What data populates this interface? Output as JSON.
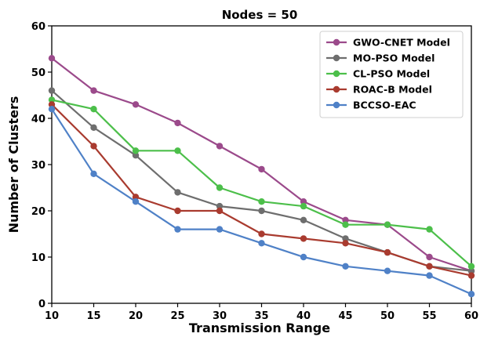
{
  "chart_data": {
    "type": "line",
    "title": "Nodes = 50",
    "xlabel": "Transmission Range",
    "ylabel": "Number of Clusters",
    "x": [
      10,
      15,
      20,
      25,
      30,
      35,
      40,
      45,
      50,
      55,
      60
    ],
    "xlim": [
      10,
      60
    ],
    "ylim": [
      0,
      60
    ],
    "xticks": [
      10,
      15,
      20,
      25,
      30,
      35,
      40,
      45,
      50,
      55,
      60
    ],
    "yticks": [
      0,
      10,
      20,
      30,
      40,
      50,
      60
    ],
    "grid": false,
    "legend_position": "top-right",
    "series": [
      {
        "name": "GWO-CNET Model",
        "color": "#9b4a8b",
        "values": [
          53,
          46,
          43,
          39,
          34,
          29,
          22,
          18,
          17,
          10,
          7
        ]
      },
      {
        "name": "MO-PSO Model",
        "color": "#6e6e6e",
        "values": [
          46,
          38,
          32,
          24,
          21,
          20,
          18,
          14,
          11,
          8,
          7
        ]
      },
      {
        "name": "CL-PSO Model",
        "color": "#4cbf4a",
        "values": [
          44,
          42,
          33,
          33,
          25,
          22,
          21,
          17,
          17,
          16,
          8
        ]
      },
      {
        "name": "ROAC-B Model",
        "color": "#a93b2f",
        "values": [
          43,
          34,
          23,
          20,
          20,
          15,
          14,
          13,
          11,
          8,
          6
        ]
      },
      {
        "name": "BCCSO-EAC",
        "color": "#4f81c7",
        "values": [
          42,
          28,
          22,
          16,
          16,
          13,
          10,
          8,
          7,
          6,
          2
        ]
      }
    ]
  }
}
